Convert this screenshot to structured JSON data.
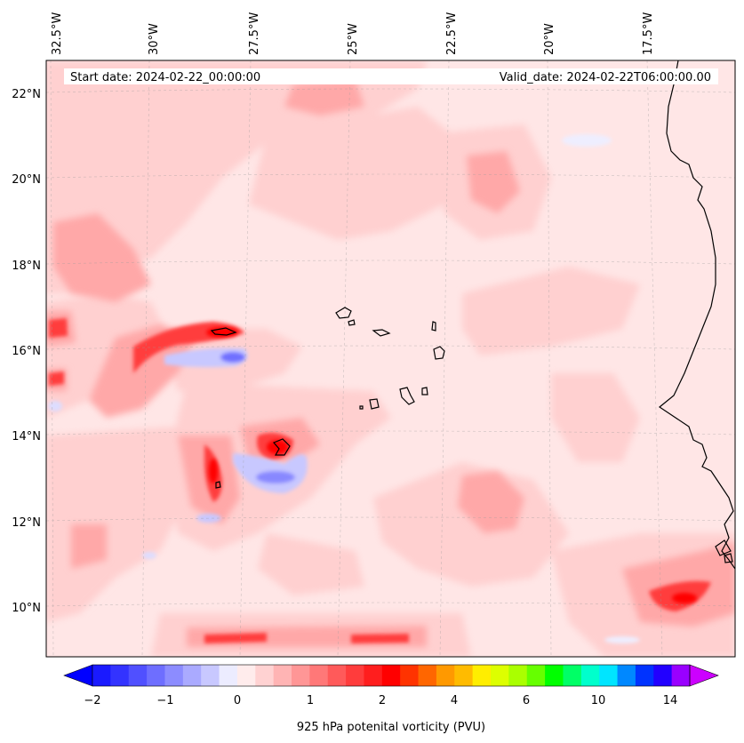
{
  "map": {
    "start_date_label": "Start date: 2024-02-22_00:00:00",
    "valid_date_label": "Valid_date: 2024-02-22T06:00:00.00",
    "longitude_labels": [
      "32.5°W",
      "30°W",
      "27.5°W",
      "25°W",
      "22.5°W",
      "20°W",
      "17.5°W"
    ],
    "latitude_labels": [
      "22°N",
      "20°N",
      "18°N",
      "16°N",
      "14°N",
      "12°N",
      "10°N"
    ],
    "background_color": "#ffe6e6",
    "coastline_color": "#000000"
  },
  "colorbar": {
    "title": "925 hPa potenital vorticity (PVU)",
    "ticks": [
      "−2",
      "−1",
      "0",
      "1",
      "2",
      "4",
      "6",
      "10",
      "14"
    ],
    "colors": [
      "#1a1aff",
      "#3333ff",
      "#5050ff",
      "#6e6eff",
      "#8c8cff",
      "#aaaaff",
      "#c8c8ff",
      "#ececff",
      "#ffecec",
      "#ffd2d2",
      "#ffb4b4",
      "#ff9696",
      "#ff7878",
      "#ff5a5a",
      "#ff3c3c",
      "#ff1e1e",
      "#ff0000",
      "#ff3300",
      "#ff6600",
      "#ff9900",
      "#ffbb00",
      "#ffee00",
      "#ddff00",
      "#aaff00",
      "#66ff00",
      "#00ff00",
      "#00ff66",
      "#00ffcc",
      "#00e5ff",
      "#0088ff",
      "#0033ff",
      "#2200ff",
      "#9900ff"
    ],
    "under_color": "#0000ff",
    "over_color": "#cc00ff"
  }
}
